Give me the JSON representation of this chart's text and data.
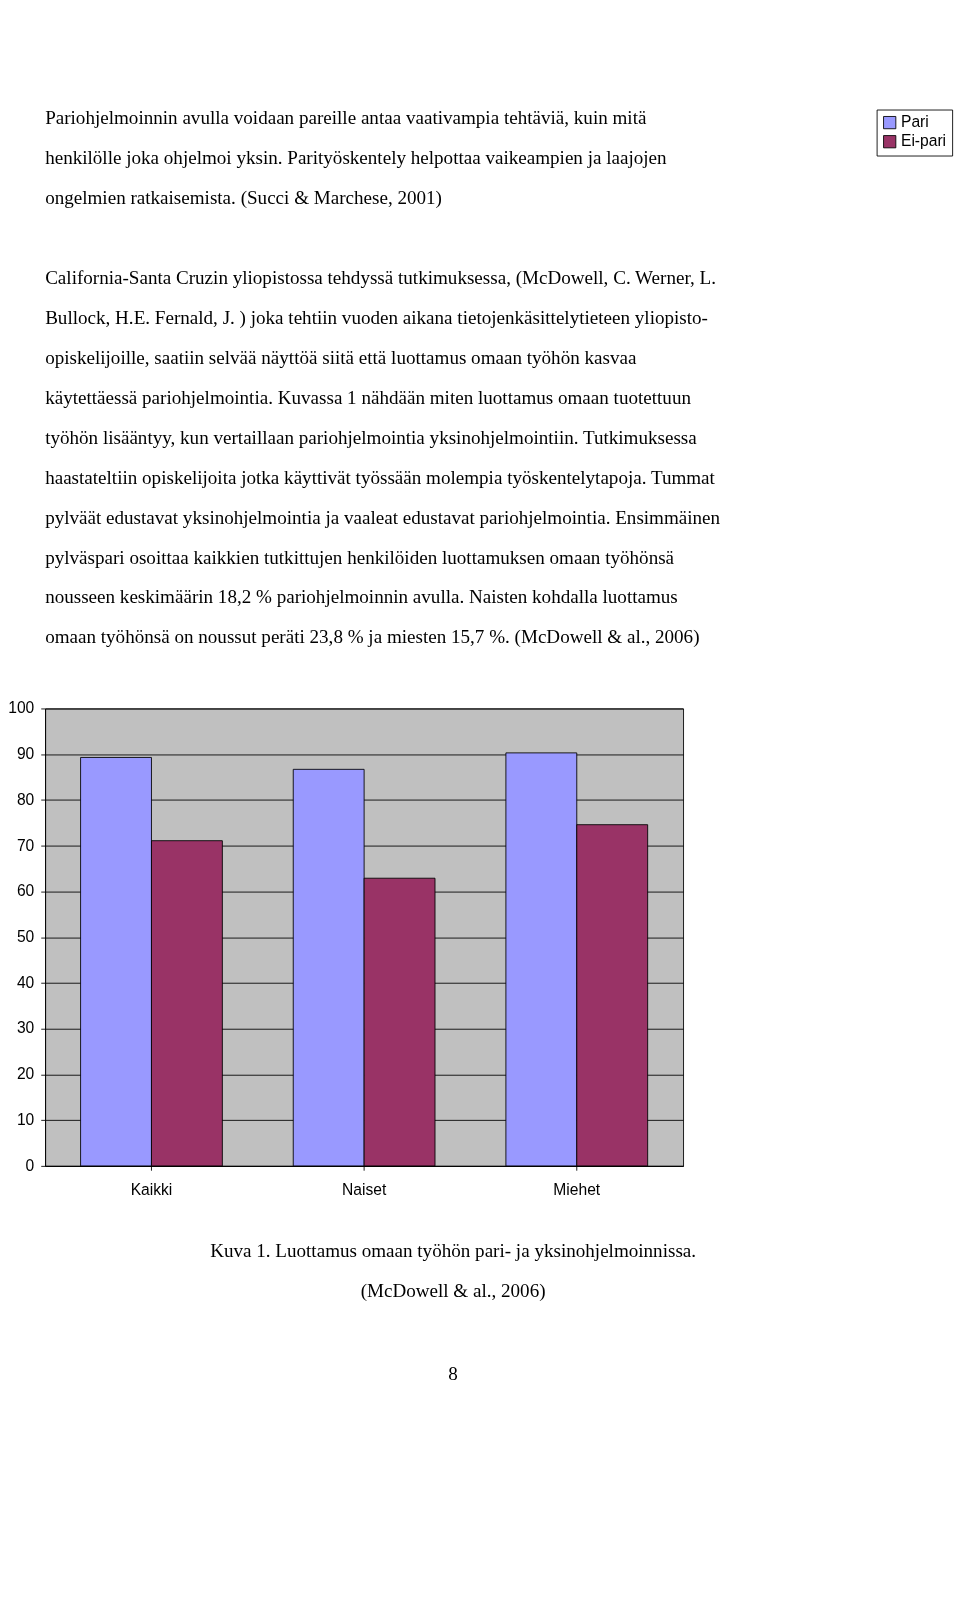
{
  "chart_data": {
    "type": "bar",
    "categories": [
      "Kaikki",
      "Naiset",
      "Miehet"
    ],
    "series": [
      {
        "name": "Pari",
        "color": "#9999ff",
        "values": [
          89.3,
          86.7,
          90.3
        ]
      },
      {
        "name": "Ei-pari",
        "color": "#993366",
        "values": [
          71.1,
          62.9,
          74.6
        ]
      }
    ],
    "ylim": [
      0,
      100
    ],
    "yticks": [
      0,
      10,
      20,
      30,
      40,
      50,
      60,
      70,
      80,
      90,
      100
    ],
    "grid": "y",
    "legend": "right",
    "annotations": [
      "Pariohjelmoinnin avulla voidaan pareille antaa vaativampia tehtäviä, kuin mitä\nhenkilölle joka ohjelmoi yksin. Parityöskentely helpottaa vaikeampien ja laajojen\nongelmien ratkaisemista. (Succi & Marchese, 2001)",
      "California-Santa Cruzin yliopistossa tehdyssä tutkimuksessa, (McDowell, C. Werner, L.\nBullock, H.E. Fernald, J. ) joka tehtiin vuoden aikana tietojenkäsittelytieteen yliopisto-\nopiskelijoille, saatiin selvää näyttöä siitä että luottamus omaan työhön kasvaa\nkäytettäessä pariohjelmointia. Kuvassa 1 nähdään miten luottamus omaan tuotettuun\ntyöhön lisääntyy, kun vertaillaan pariohjelmointia yksinohjelmointiin. Tutkimuksessa\nhaastateltiin opiskelijoita jotka käyttivät työssään molempia työskentelytapoja. Tummat\npylväät edustavat yksinohjelmointia ja vaaleat edustavat pariohjelmointia. Ensimmäinen\npylväspari osoittaa kaikkien tutkittujen henkilöiden luottamuksen omaan työhönsä\nnousseen keskimäärin 18,2 % pariohjelmoinnin avulla. Naisten kohdalla luottamus\nomaan työhönsä on noussut peräti 23,8 % ja miesten 15,7 %. (McDowell & al., 2006)",
      "Kuva 1. Luottamus omaan työhön pari- ja yksinohjelmoinnissa.\n(McDowell & al., 2006)",
      "8"
    ]
  }
}
